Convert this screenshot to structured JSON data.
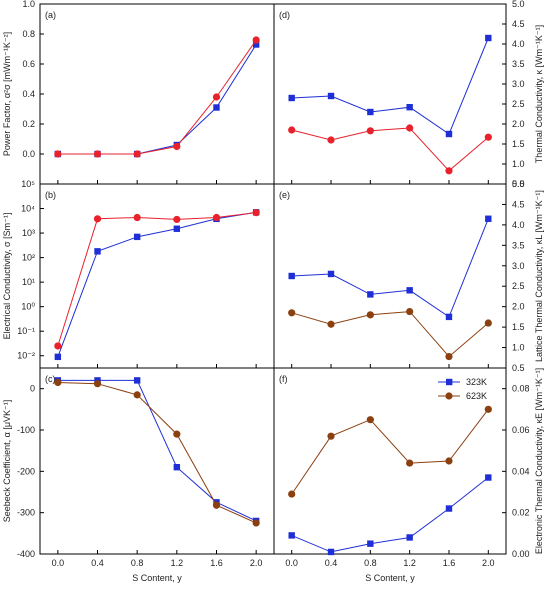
{
  "chart_data": [
    {
      "panel": "(a)",
      "type": "line",
      "x": [
        0.0,
        0.4,
        0.8,
        1.2,
        1.6,
        2.0
      ],
      "ylabel": "Power Factor, α²σ [mWm⁻¹K⁻²]",
      "ylim": [
        -0.2,
        1.0
      ],
      "yticks": [
        0.0,
        0.2,
        0.4,
        0.6,
        0.8,
        1.0
      ],
      "ytick_labels": [
        "0.0",
        "0.2",
        "0.4",
        "0.6",
        "0.8",
        "1.0"
      ],
      "yaxis_side": "left",
      "yscale": "linear",
      "series": [
        {
          "values": [
            0.0,
            0.0,
            0.0,
            0.06,
            0.31,
            0.73
          ],
          "color": "#1f2fd6",
          "marker": "square"
        },
        {
          "values": [
            0.0,
            0.0,
            0.0,
            0.05,
            0.38,
            0.76
          ],
          "color": "#e8212b",
          "marker": "circle"
        }
      ]
    },
    {
      "panel": "(b)",
      "type": "line",
      "x": [
        0.0,
        0.4,
        0.8,
        1.2,
        1.6,
        2.0
      ],
      "ylabel": "Electrical Conductivity, σ [Sm⁻¹]",
      "ylim": [
        -2.5,
        5
      ],
      "yticks": [
        -2,
        -1,
        0,
        1,
        2,
        3,
        4,
        5
      ],
      "ytick_labels": [
        "10⁻²",
        "10⁻¹",
        "10⁰",
        "10¹",
        "10²",
        "10³",
        "10⁴",
        "10⁵"
      ],
      "yaxis_side": "left",
      "yscale": "log",
      "series": [
        {
          "values": [
            0.009,
            180,
            700,
            1500,
            3800,
            7000
          ],
          "color": "#1f2fd6",
          "marker": "square"
        },
        {
          "values": [
            0.025,
            3800,
            4300,
            3600,
            4300,
            6800
          ],
          "color": "#e8212b",
          "marker": "circle"
        }
      ]
    },
    {
      "panel": "(c)",
      "type": "line",
      "x": [
        0.0,
        0.4,
        0.8,
        1.2,
        1.6,
        2.0
      ],
      "xlabel": "S Content, y",
      "ylabel": "Seebeck Coefficient, α [μVK⁻¹]",
      "ylim": [
        -400,
        50
      ],
      "yticks": [
        -400,
        -300,
        -200,
        -100,
        0
      ],
      "ytick_labels": [
        "-400",
        "-300",
        "-200",
        "-100",
        "0"
      ],
      "xtick_labels": [
        "0.0",
        "0.4",
        "0.8",
        "1.2",
        "1.6",
        "2.0"
      ],
      "yaxis_side": "left",
      "yscale": "linear",
      "series": [
        {
          "values": [
            20,
            20,
            20,
            -190,
            -275,
            -320
          ],
          "color": "#1f2fd6",
          "marker": "square"
        },
        {
          "values": [
            15,
            12,
            -15,
            -110,
            -282,
            -325
          ],
          "color": "#8b4010",
          "marker": "circle"
        }
      ]
    },
    {
      "panel": "(d)",
      "type": "line",
      "x": [
        0.0,
        0.4,
        0.8,
        1.2,
        1.6,
        2.0
      ],
      "ylabel": "Thermal Conductivity, κ [Wm⁻¹K⁻¹]",
      "ylim": [
        0.5,
        5.0
      ],
      "yticks": [
        0.5,
        1.0,
        1.5,
        2.0,
        2.5,
        3.0,
        3.5,
        4.0,
        4.5,
        5.0
      ],
      "ytick_labels": [
        "0.5",
        "1.0",
        "1.5",
        "2.0",
        "2.5",
        "3.0",
        "3.5",
        "4.0",
        "4.5",
        "5.0"
      ],
      "yaxis_side": "right",
      "yscale": "linear",
      "series": [
        {
          "values": [
            2.65,
            2.7,
            2.3,
            2.42,
            1.75,
            4.15
          ],
          "color": "#1f2fd6",
          "marker": "square"
        },
        {
          "values": [
            1.85,
            1.6,
            1.83,
            1.9,
            0.83,
            1.67
          ],
          "color": "#e8212b",
          "marker": "circle"
        }
      ]
    },
    {
      "panel": "(e)",
      "type": "line",
      "x": [
        0.0,
        0.4,
        0.8,
        1.2,
        1.6,
        2.0
      ],
      "ylabel": "Lattice Thermal Conductivity, κL [Wm⁻¹K⁻¹]",
      "ylim": [
        0.5,
        5.0
      ],
      "yticks": [
        0.5,
        1.0,
        1.5,
        2.0,
        2.5,
        3.0,
        3.5,
        4.0,
        4.5,
        5.0
      ],
      "ytick_labels": [
        "0.5",
        "1.0",
        "1.5",
        "2.0",
        "2.5",
        "3.0",
        "3.5",
        "4.0",
        "4.5",
        "5.0"
      ],
      "yaxis_side": "right",
      "yscale": "linear",
      "series": [
        {
          "values": [
            2.75,
            2.8,
            2.3,
            2.4,
            1.75,
            4.15
          ],
          "color": "#1f2fd6",
          "marker": "square"
        },
        {
          "values": [
            1.85,
            1.57,
            1.8,
            1.88,
            0.78,
            1.6
          ],
          "color": "#8b4010",
          "marker": "circle"
        }
      ]
    },
    {
      "panel": "(f)",
      "type": "line",
      "x": [
        0.0,
        0.4,
        0.8,
        1.2,
        1.6,
        2.0
      ],
      "xlabel": "S Content, y",
      "ylabel": "Electronic Thermal Conductivity, κE [Wm⁻¹K⁻¹]",
      "ylim": [
        0.0,
        0.09
      ],
      "yticks": [
        0.0,
        0.02,
        0.04,
        0.06,
        0.08
      ],
      "ytick_labels": [
        "0.00",
        "0.02",
        "0.04",
        "0.06",
        "0.08"
      ],
      "xtick_labels": [
        "0.0",
        "0.4",
        "0.8",
        "1.2",
        "1.6",
        "2.0"
      ],
      "yaxis_side": "right",
      "yscale": "linear",
      "legend": {
        "position": "top-right",
        "entries": [
          "323K",
          "623K"
        ]
      },
      "series": [
        {
          "name": "323K",
          "values": [
            0.009,
            0.001,
            0.005,
            0.008,
            0.022,
            0.037
          ],
          "color": "#1f2fd6",
          "marker": "square"
        },
        {
          "name": "623K",
          "values": [
            0.029,
            0.057,
            0.065,
            0.044,
            0.045,
            0.07
          ],
          "color": "#8b4010",
          "marker": "circle"
        }
      ]
    }
  ]
}
